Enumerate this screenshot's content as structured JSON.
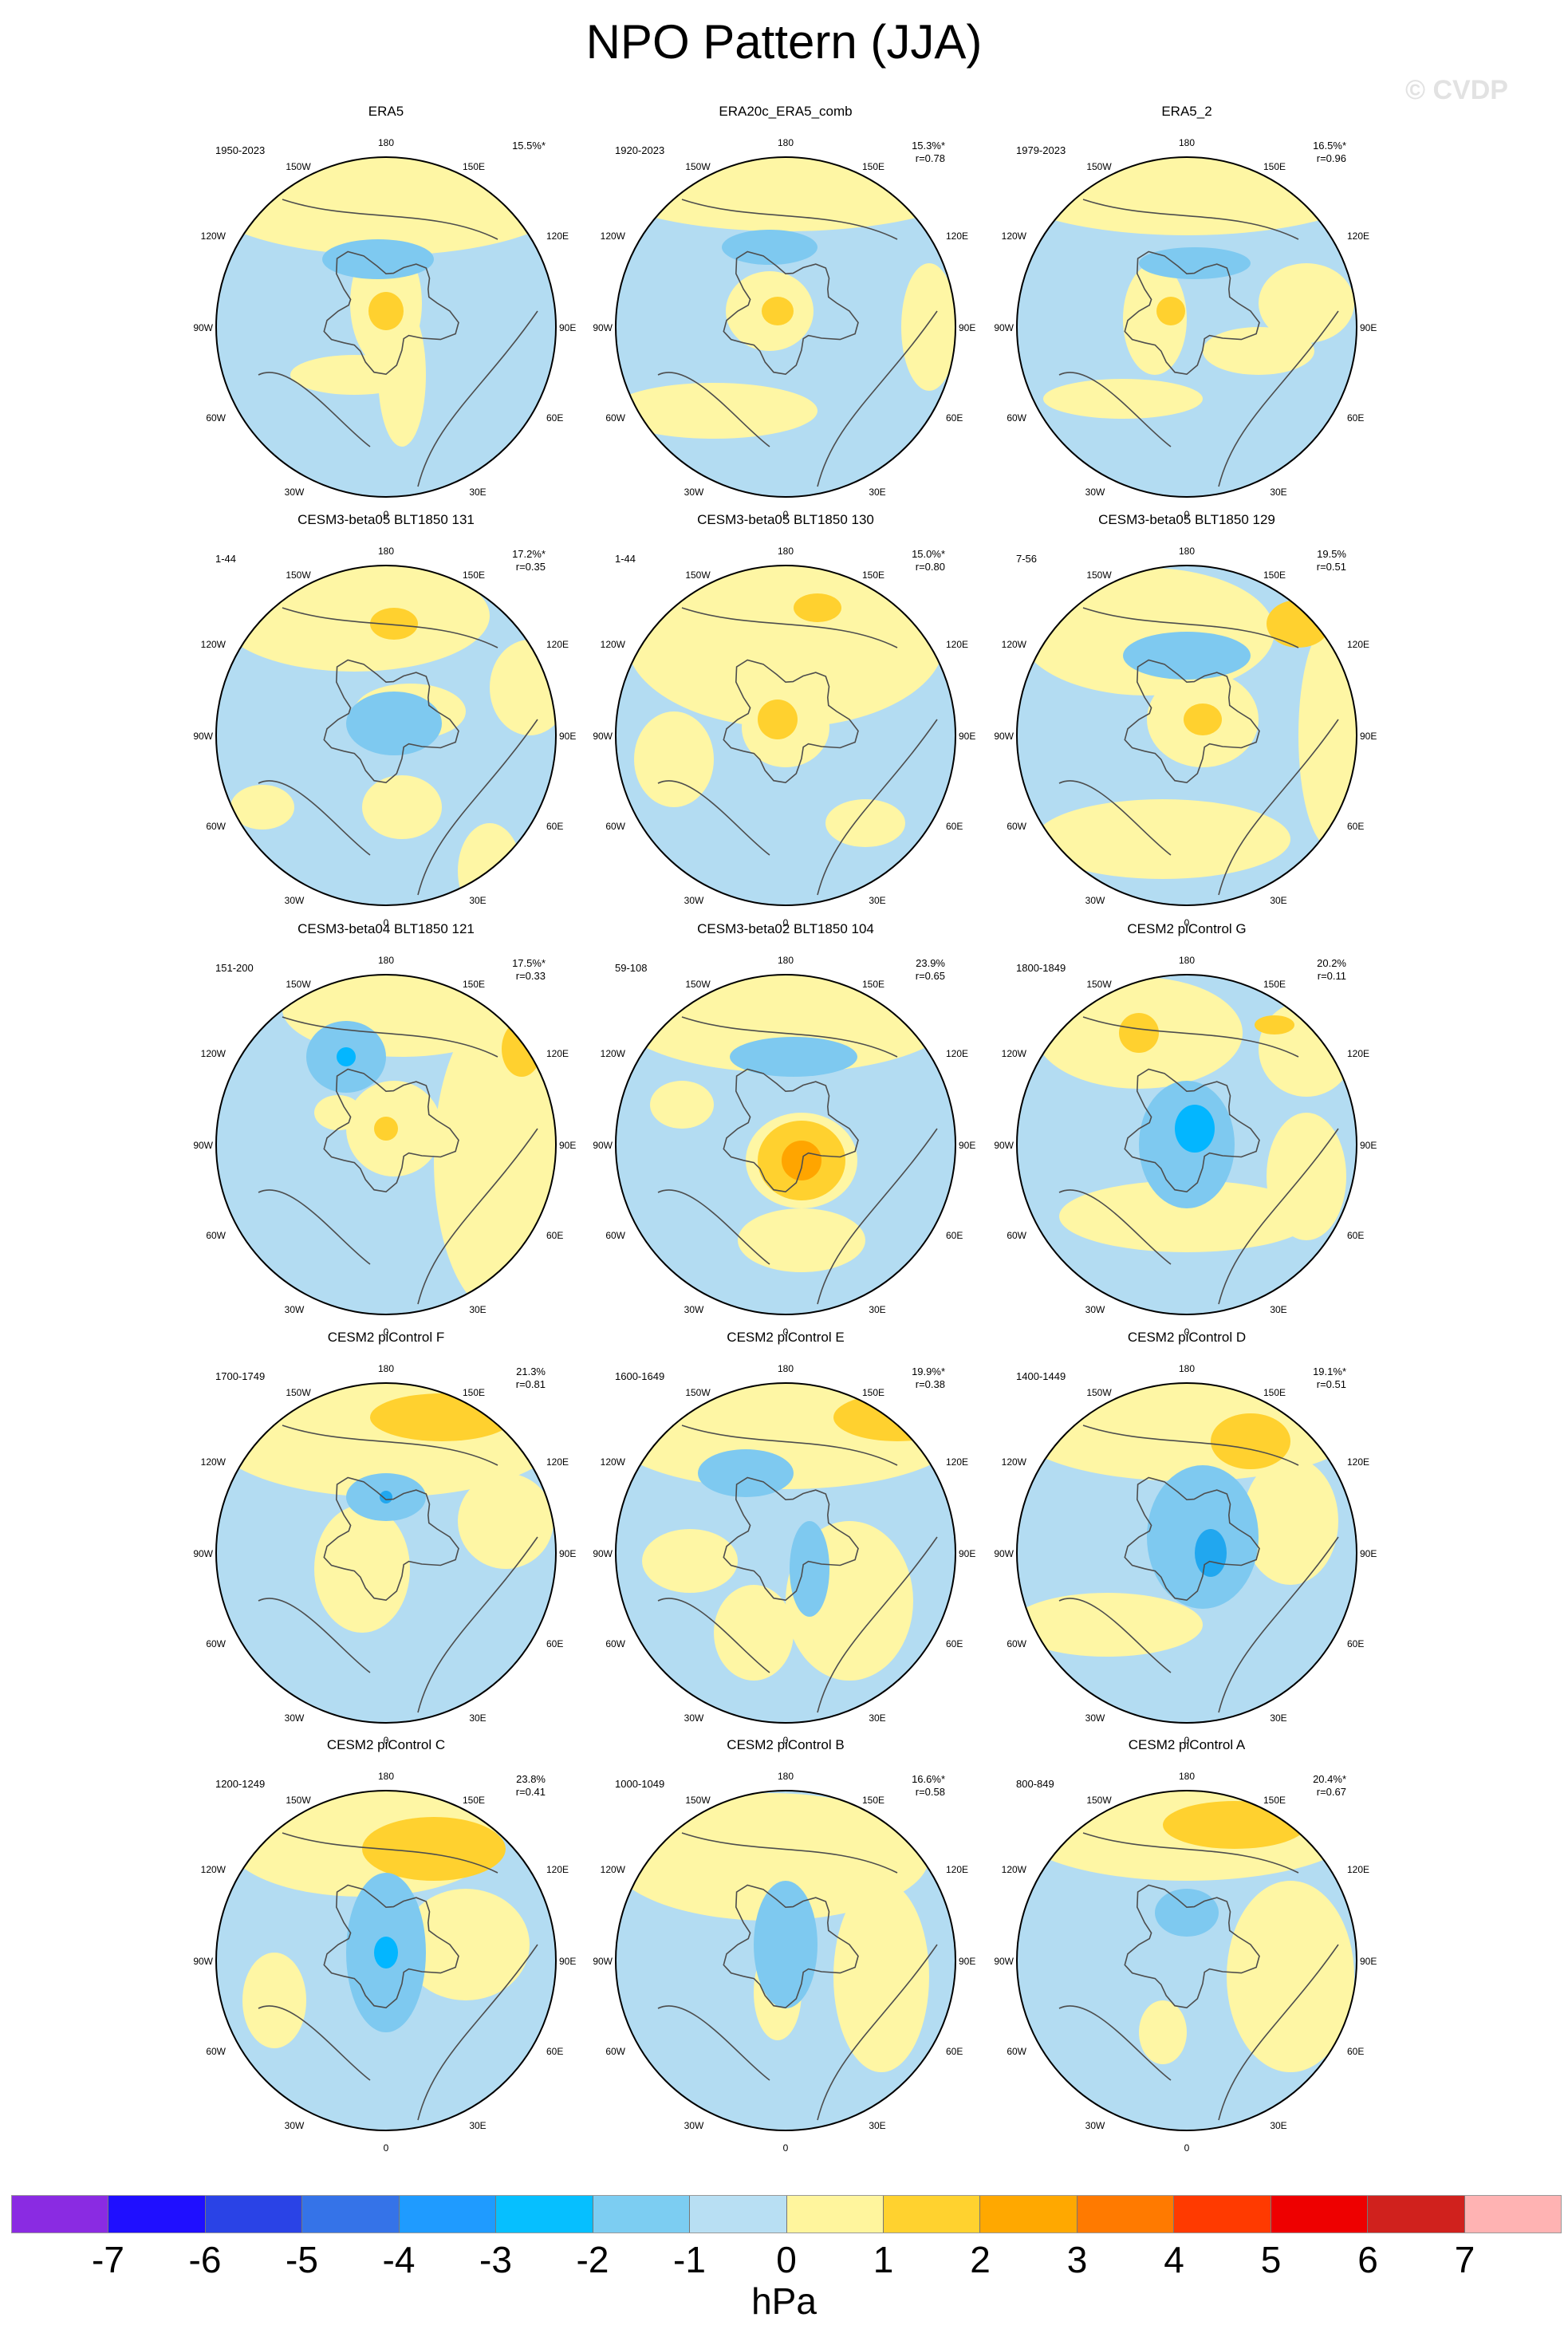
{
  "figure": {
    "title": "NPO Pattern (JJA)",
    "watermark": "© CVDP"
  },
  "colors": {
    "neg_light": "#b3dcf2",
    "neg_2": "#7ec9f0",
    "neg_3": "#21a7ef",
    "neg_4": "#03b6ff",
    "pos_light": "#fef6a4",
    "pos_2": "#ffd12f",
    "pos_3": "#ffa500",
    "coast": "#4d4d4d"
  },
  "map_labels": {
    "top": "180",
    "bottom": "0",
    "right_top": "150E",
    "right_upper": "120E",
    "right_mid": "90E",
    "right_lower": "60E",
    "right_bottom": "30E",
    "left_top": "150W",
    "left_upper": "120W",
    "left_mid": "90W",
    "left_lower": "60W",
    "left_bottom": "30W"
  },
  "chart_data": {
    "type": "heatmap",
    "projection": "polar stereographic, Northern Hemisphere",
    "colorbar": {
      "label": "hPa",
      "ticks": [
        "-7",
        "-6",
        "-5",
        "-4",
        "-3",
        "-2",
        "-1",
        "0",
        "1",
        "2",
        "3",
        "4",
        "5",
        "6",
        "7"
      ],
      "colors": [
        "#8a2be2",
        "#1f0fff",
        "#2a43e6",
        "#3573e8",
        "#1f9bff",
        "#06bfff",
        "#7ccdf2",
        "#b8dff3",
        "#fff59d",
        "#ffd22f",
        "#ffa800",
        "#ff7a00",
        "#ff3a00",
        "#ee0000",
        "#d0211d",
        "#ffb3b3"
      ]
    },
    "panels": [
      {
        "title": "ERA5",
        "period": "1950-2023",
        "variance": "15.5%*",
        "r": ""
      },
      {
        "title": "ERA20c_ERA5_comb",
        "period": "1920-2023",
        "variance": "15.3%*",
        "r": "r=0.78"
      },
      {
        "title": "ERA5_2",
        "period": "1979-2023",
        "variance": "16.5%*",
        "r": "r=0.96"
      },
      {
        "title": "CESM3-beta05 BLT1850 131",
        "period": "1-44",
        "variance": "17.2%*",
        "r": "r=0.35"
      },
      {
        "title": "CESM3-beta05 BLT1850 130",
        "period": "1-44",
        "variance": "15.0%*",
        "r": "r=0.80"
      },
      {
        "title": "CESM3-beta05 BLT1850 129",
        "period": "7-56",
        "variance": "19.5%",
        "r": "r=0.51"
      },
      {
        "title": "CESM3-beta04 BLT1850 121",
        "period": "151-200",
        "variance": "17.5%*",
        "r": "r=0.33"
      },
      {
        "title": "CESM3-beta02 BLT1850 104",
        "period": "59-108",
        "variance": "23.9%",
        "r": "r=0.65"
      },
      {
        "title": "CESM2 piControl G",
        "period": "1800-1849",
        "variance": "20.2%",
        "r": "r=0.11"
      },
      {
        "title": "CESM2 piControl F",
        "period": "1700-1749",
        "variance": "21.3%",
        "r": "r=0.81"
      },
      {
        "title": "CESM2 piControl E",
        "period": "1600-1649",
        "variance": "19.9%*",
        "r": "r=0.38"
      },
      {
        "title": "CESM2 piControl D",
        "period": "1400-1449",
        "variance": "19.1%*",
        "r": "r=0.51"
      },
      {
        "title": "CESM2 piControl C",
        "period": "1200-1249",
        "variance": "23.8%",
        "r": "r=0.41"
      },
      {
        "title": "CESM2 piControl B",
        "period": "1000-1049",
        "variance": "16.6%*",
        "r": "r=0.58"
      },
      {
        "title": "CESM2 piControl A",
        "period": "800-849",
        "variance": "20.4%*",
        "r": "r=0.67"
      }
    ]
  }
}
